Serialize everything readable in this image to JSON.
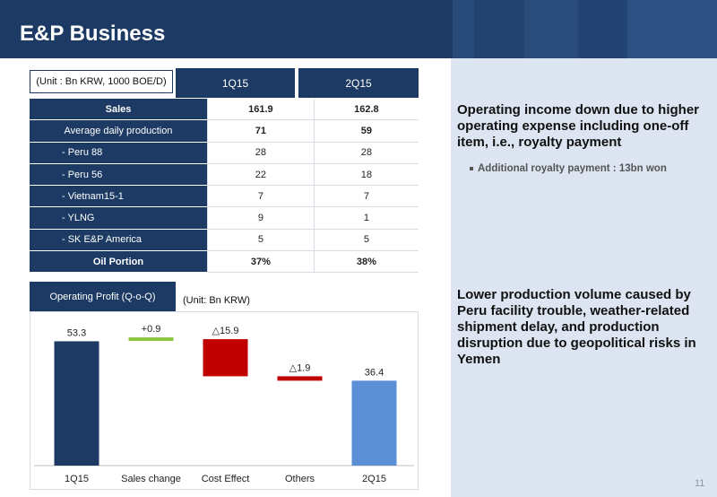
{
  "header": {
    "title": "E&P Business"
  },
  "table": {
    "unit": "(Unit : Bn KRW, 1000 BOE/D)",
    "columns": [
      "1Q15",
      "2Q15"
    ],
    "rows": [
      {
        "label": "Sales",
        "values": [
          "161.9",
          "162.8"
        ]
      },
      {
        "label": "Average daily production",
        "values": [
          "71",
          "59"
        ]
      },
      {
        "label": "- Peru 88",
        "values": [
          "28",
          "28"
        ]
      },
      {
        "label": "- Peru 56",
        "values": [
          "22",
          "18"
        ]
      },
      {
        "label": "- Vietnam15-1",
        "values": [
          "7",
          "7"
        ]
      },
      {
        "label": "- YLNG",
        "values": [
          "9",
          "1"
        ]
      },
      {
        "label": "- SK E&P America",
        "values": [
          "5",
          "5"
        ]
      },
      {
        "label": "Oil Portion",
        "values": [
          "37%",
          "38%"
        ]
      }
    ]
  },
  "op_chart": {
    "label": "Operating Profit (Q-o-Q)",
    "unit": "(Unit: Bn KRW)"
  },
  "chart_data": {
    "type": "bar",
    "subtype": "waterfall",
    "categories": [
      "1Q15",
      "Sales change",
      "Cost Effect",
      "Others",
      "2Q15"
    ],
    "values": [
      53.3,
      0.9,
      -15.9,
      -1.9,
      36.4
    ],
    "data_labels": [
      "53.3",
      "+0.9",
      "△15.9",
      "△1.9",
      "36.4"
    ],
    "colors": [
      "#1c3a63",
      "#8cc63f",
      "#c00000",
      "#c00000",
      "#5b8fd6"
    ],
    "grid": false,
    "ylim": [
      0,
      60
    ]
  },
  "right": {
    "point1": "Operating income down due to higher operating expense including one-off item, i.e., royalty payment",
    "bullet1": "Additional royalty payment  : 13bn won",
    "point2": "Lower production volume caused by Peru facility trouble, weather-related shipment delay, and production disruption due to geopolitical risks in Yemen"
  },
  "page_number": "11"
}
